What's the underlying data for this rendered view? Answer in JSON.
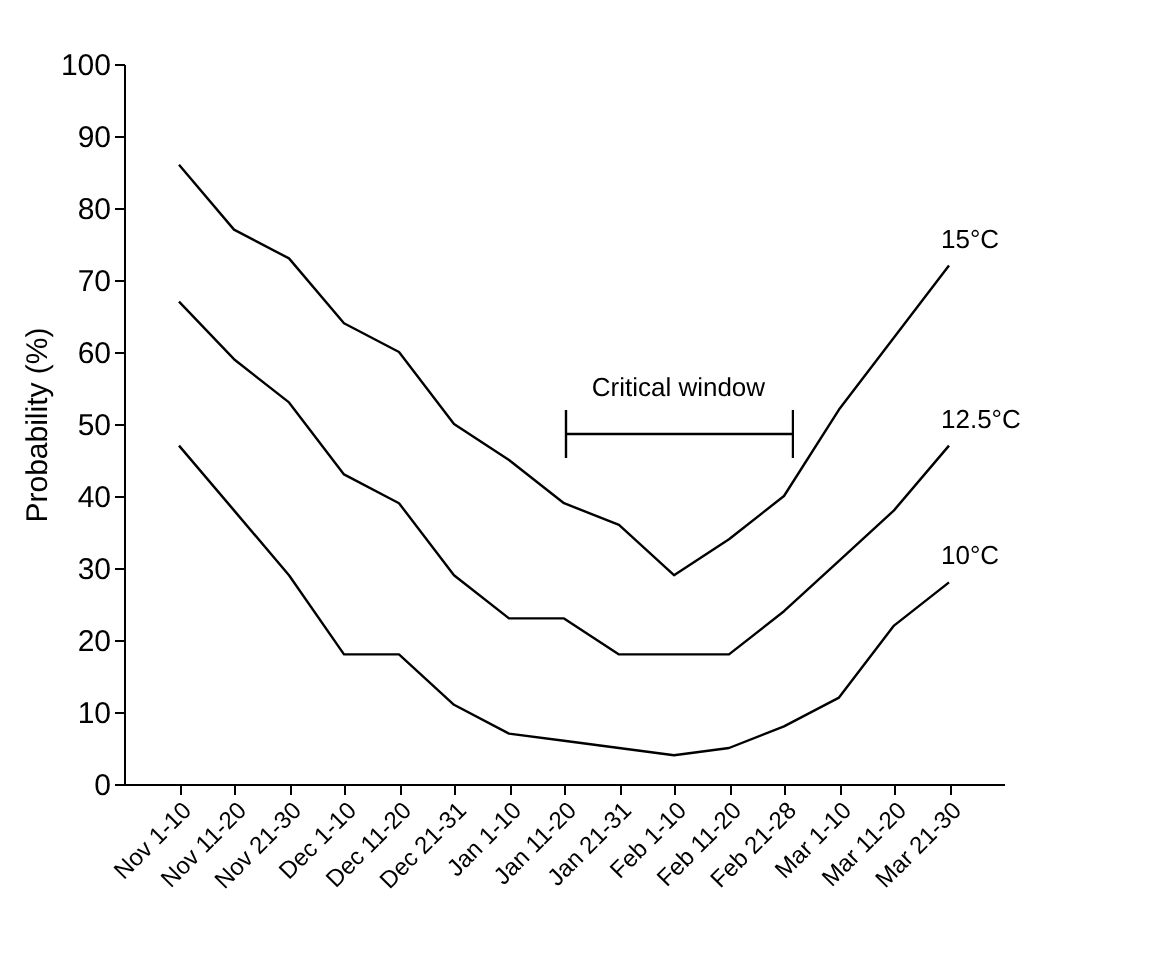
{
  "chart_data": {
    "type": "line",
    "ylabel": "Probability (%)",
    "categories": [
      "Nov 1-10",
      "Nov 11-20",
      "Nov 21-30",
      "Dec 1-10",
      "Dec 11-20",
      "Dec 21-31",
      "Jan 1-10",
      "Jan 11-20",
      "Jan 21-31",
      "Feb 1-10",
      "Feb 11-20",
      "Feb 21-28",
      "Mar 1-10",
      "Mar 11-20",
      "Mar 21-30"
    ],
    "series": [
      {
        "name": "15°C",
        "color": "#000000",
        "values": [
          86,
          77,
          73,
          64,
          60,
          50,
          45,
          39,
          36,
          29,
          34,
          40,
          52,
          62,
          72
        ]
      },
      {
        "name": "12.5°C",
        "color": "#000000",
        "values": [
          67,
          59,
          53,
          43,
          39,
          29,
          23,
          23,
          18,
          18,
          18,
          24,
          31,
          38,
          47
        ]
      },
      {
        "name": "10°C",
        "color": "#000000",
        "values": [
          47,
          38,
          29,
          18,
          18,
          11,
          7,
          6,
          5,
          4,
          5,
          8,
          12,
          22,
          28
        ]
      }
    ],
    "annotations": [
      "Critical window"
    ],
    "ylim": [
      0,
      100
    ],
    "yticks": [
      0,
      10,
      20,
      30,
      40,
      50,
      60,
      70,
      80,
      90,
      100
    ],
    "grid": false,
    "legend": false,
    "marker": "none",
    "line_style": "solid"
  }
}
